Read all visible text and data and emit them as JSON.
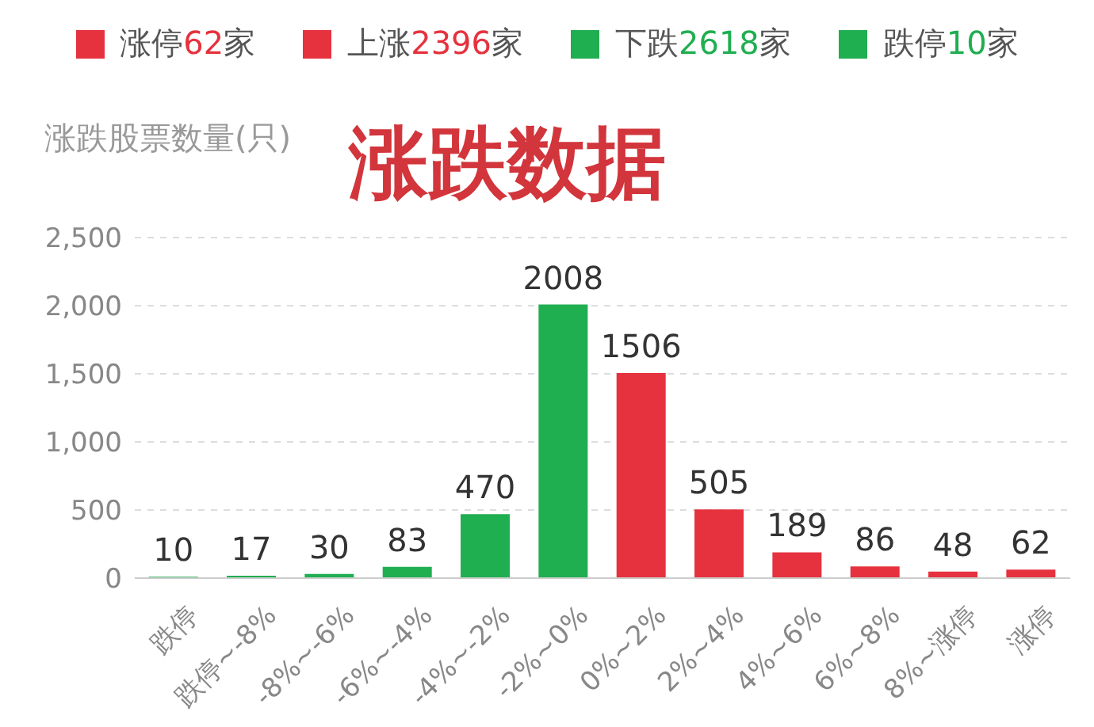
{
  "chart_data": {
    "type": "bar",
    "title": "涨跌数据",
    "ylabel": "涨跌股票数量(只)",
    "annotations": [
      "涨停62家",
      "上涨2396家",
      "下跌2618家",
      "跌停10家"
    ],
    "categories": [
      "跌停",
      "跌停~-8%",
      "-8%~-6%",
      "-6%~-4%",
      "-4%~-2%",
      "-2%~0%",
      "0%~2%",
      "2%~4%",
      "4%~6%",
      "6%~8%",
      "8%~涨停",
      "涨停"
    ],
    "values": [
      10,
      17,
      30,
      83,
      470,
      2008,
      1506,
      505,
      189,
      86,
      48,
      62
    ],
    "colors": [
      "#1fae50",
      "#1fae50",
      "#1fae50",
      "#1fae50",
      "#1fae50",
      "#1fae50",
      "#e5323e",
      "#e5323e",
      "#e5323e",
      "#e5323e",
      "#e5323e",
      "#e5323e"
    ],
    "ylim": [
      0,
      2500
    ],
    "yticks": [
      0,
      500,
      {
        "value": 1000,
        "label": "1,000"
      },
      {
        "value": 1500,
        "label": "1,500"
      },
      {
        "value": 2000,
        "label": "2,000"
      },
      {
        "value": 2500,
        "label": "2,500"
      }
    ],
    "grid": "y",
    "data_labels": true
  }
}
